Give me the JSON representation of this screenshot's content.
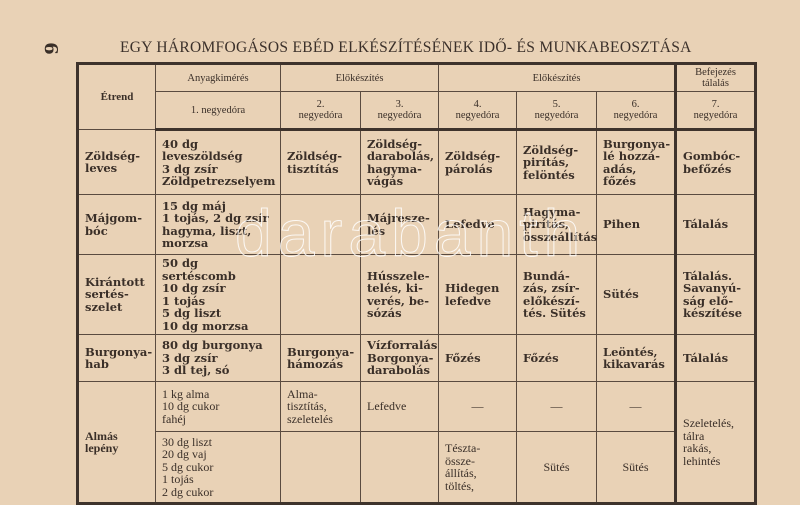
{
  "page_number": "6",
  "title": "EGY HÁROMFOGÁSOS EBÉD ELKÉSZÍTÉSÉNEK IDŐ- ÉS MUNKABEOSZTÁSA",
  "watermark": "darabanth",
  "header": {
    "etrend": "Étrend",
    "anyagkimeres": "Anyagkimérés",
    "elokeszites1": "Előkészítés",
    "elokeszites2": "Előkészítés",
    "befejezes": "Befejezés\ntálalás",
    "quarters": [
      "1. negyedóra",
      "2.\nnegyedóra",
      "3.\nnegyedóra",
      "4.\nnegyedóra",
      "5.\nnegyedóra",
      "6.\nnegyedóra",
      "7.\nnegyedóra"
    ]
  },
  "rows": [
    {
      "dish": "Zöldség-\nleves",
      "cells": [
        "40 dg leveszöldség\n  3 dg zsír\nZöldpetrezselyem",
        "Zöldség-\ntisztítás",
        "Zöldség-\ndarabolás,\nhagyma-\nvágás",
        "Zöldség-\npárolás",
        "Zöldség-\npirítás,\nfelöntés",
        "Burgonya-\nlé hozzá-\nadás, főzés",
        "Gombóc-\nbefőzés"
      ]
    },
    {
      "dish": "Májgom-\nbóc",
      "cells": [
        "15 dg máj\n  1 tojás, 2 dg zsír\nhagyma, liszt,\nmorzsa",
        "",
        "Májresze-\nlés",
        "Lefedve",
        "Hagyma-\npirítás,\nösszeállítás",
        "Pihen",
        "Tálalás"
      ]
    },
    {
      "dish": "Kirántott\nsertés-\nszelet",
      "cells": [
        "50 dg sertéscomb\n10 dg zsír\n  1 tojás\n  5 dg liszt\n10 dg morzsa",
        "",
        "Hússzele-\ntelés, ki-\nverés, be-\nsózás",
        "Hidegen\nlefedve",
        "Bundá-\nzás, zsír-\nelőkészí-\ntés. Sütés",
        "Sütés",
        "Tálalás.\nSavanyú-\nság elő-\nkészítése"
      ]
    },
    {
      "dish": "Burgonya-\nhab",
      "cells": [
        "80 dg burgonya\n  3 dg zsír\n  3 dl tej, só",
        "Burgonya-\nhámozás",
        "Vízforralás\nBorgonya-\ndarabolás",
        "Főzés",
        "Főzés",
        "Leöntés,\nkikavarás",
        "Tálalás"
      ]
    },
    {
      "dish": "Almás\nlepény",
      "cells": [
        "1 kg alma\n10 dg cukor\n       fahéj",
        "Alma-\ntisztítás,\nszeletelés",
        "Lefedve",
        "—",
        "—",
        "—",
        "Szeletelés,\ntálra\nrakás,\nlehintés"
      ],
      "cells_b": [
        "30 dg liszt\n20 dg vaj\n  5 dg cukor\n  1 tojás\n  2 dg cukor",
        "",
        "",
        "Tészta-\nössze-\nállítás,\ntöltés,",
        "Sütés",
        "Sütés"
      ]
    }
  ]
}
